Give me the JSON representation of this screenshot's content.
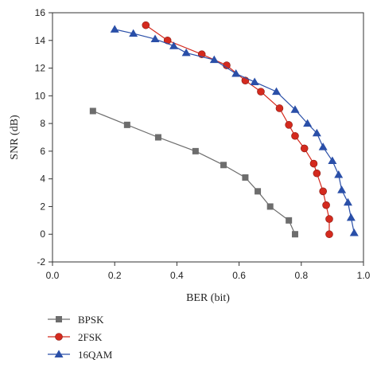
{
  "chart_data": {
    "type": "line",
    "title": "",
    "xlabel": "BER (bit)",
    "ylabel": "SNR (dB)",
    "xlim": [
      0.0,
      1.0
    ],
    "ylim": [
      -2,
      16
    ],
    "xticks": [
      "0.0",
      "0.2",
      "0.4",
      "0.6",
      "0.8",
      "1.0"
    ],
    "yticks": [
      "-2",
      "0",
      "2",
      "4",
      "6",
      "8",
      "10",
      "12",
      "14",
      "16"
    ],
    "grid": false,
    "legend_position": "bottom-left",
    "series": [
      {
        "name": "BPSK",
        "color": "#6d6d6d",
        "marker": "square",
        "x": [
          0.78,
          0.76,
          0.7,
          0.66,
          0.62,
          0.55,
          0.46,
          0.34,
          0.24,
          0.13
        ],
        "y": [
          0.0,
          1.0,
          2.0,
          3.1,
          4.1,
          5.0,
          6.0,
          7.0,
          7.9,
          8.9
        ]
      },
      {
        "name": "2FSK",
        "color": "#d42a1e",
        "marker": "circle",
        "x": [
          0.89,
          0.89,
          0.88,
          0.87,
          0.85,
          0.84,
          0.81,
          0.78,
          0.76,
          0.73,
          0.67,
          0.62,
          0.56,
          0.48,
          0.37,
          0.3
        ],
        "y": [
          0.0,
          1.1,
          2.1,
          3.1,
          4.4,
          5.1,
          6.2,
          7.1,
          7.9,
          9.1,
          10.3,
          11.1,
          12.2,
          13.0,
          14.0,
          15.1
        ]
      },
      {
        "name": "16QAM",
        "color": "#2a4fa8",
        "marker": "triangle",
        "x": [
          0.97,
          0.96,
          0.95,
          0.93,
          0.92,
          0.9,
          0.87,
          0.85,
          0.82,
          0.78,
          0.72,
          0.65,
          0.59,
          0.52,
          0.43,
          0.39,
          0.33,
          0.26,
          0.2
        ],
        "y": [
          0.1,
          1.2,
          2.3,
          3.2,
          4.3,
          5.3,
          6.3,
          7.3,
          8.0,
          9.0,
          10.3,
          11.0,
          11.6,
          12.6,
          13.1,
          13.6,
          14.1,
          14.5,
          14.8
        ]
      }
    ]
  }
}
